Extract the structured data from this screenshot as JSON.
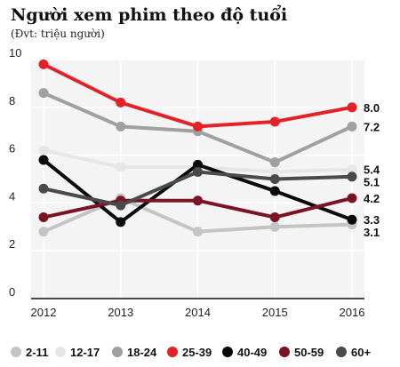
{
  "title": "Người xem phim theo độ tuổi",
  "subtitle": "(Đvt: triệu người)",
  "chart_data": {
    "type": "line",
    "x": [
      "2012",
      "2013",
      "2014",
      "2015",
      "2016"
    ],
    "ylim": [
      0,
      10
    ],
    "yticks": [
      0,
      2,
      4,
      6,
      8,
      10
    ],
    "grid": true,
    "legend_position": "bottom",
    "series": [
      {
        "name": "2-11",
        "color": "#c4c4c4",
        "values": [
          2.8,
          4.2,
          2.8,
          3.0,
          3.1
        ],
        "end_label": "3.1"
      },
      {
        "name": "12-17",
        "color": "#e6e6e6",
        "values": [
          6.2,
          5.5,
          5.5,
          5.3,
          5.4
        ],
        "end_label": "5.4"
      },
      {
        "name": "18-24",
        "color": "#a0a0a0",
        "values": [
          8.6,
          7.2,
          7.0,
          5.7,
          7.2
        ],
        "end_label": "7.2"
      },
      {
        "name": "25-39",
        "color": "#e32227",
        "values": [
          9.8,
          8.2,
          7.2,
          7.4,
          8.0
        ],
        "end_label": "8.0"
      },
      {
        "name": "40-49",
        "color": "#0a0a0a",
        "values": [
          5.8,
          3.2,
          5.6,
          4.5,
          3.3
        ],
        "end_label": "3.3"
      },
      {
        "name": "50-59",
        "color": "#7a1424",
        "values": [
          3.4,
          4.1,
          4.1,
          3.4,
          4.2
        ],
        "end_label": "4.2"
      },
      {
        "name": "60+",
        "color": "#4a4a4a",
        "values": [
          4.6,
          3.9,
          5.3,
          5.0,
          5.1
        ],
        "end_label": "5.1"
      }
    ]
  }
}
